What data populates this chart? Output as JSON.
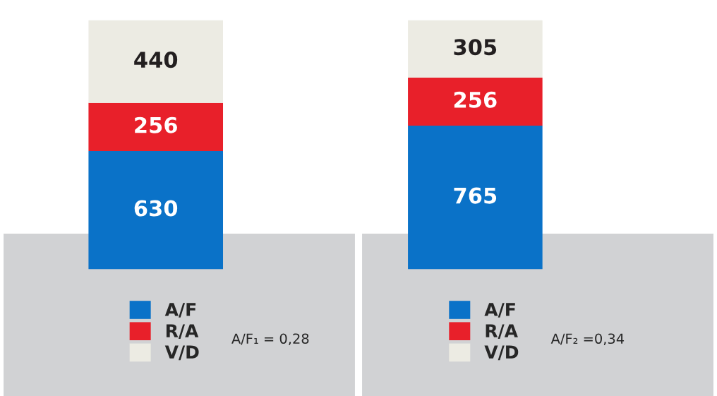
{
  "chart_data": [
    {
      "type": "bar",
      "stacked": true,
      "categories": [
        null
      ],
      "tick_labels": false,
      "data_labels": true,
      "legend": "bottom",
      "series": [
        {
          "name": "A/F",
          "color": "#0a72c8",
          "values": [
            630
          ]
        },
        {
          "name": "R/A",
          "color": "#e8202a",
          "values": [
            256
          ]
        },
        {
          "name": "V/D",
          "color": "#ecebe3",
          "values": [
            440
          ]
        }
      ],
      "annotations": [
        "A/F₁ = 0,28"
      ]
    },
    {
      "type": "bar",
      "stacked": true,
      "categories": [
        null
      ],
      "tick_labels": false,
      "data_labels": true,
      "legend": "bottom",
      "series": [
        {
          "name": "A/F",
          "color": "#0a72c8",
          "values": [
            765
          ]
        },
        {
          "name": "R/A",
          "color": "#e8202a",
          "values": [
            256
          ]
        },
        {
          "name": "V/D",
          "color": "#ecebe3",
          "values": [
            305
          ]
        }
      ],
      "annotations": [
        "A/F₂ =0,34"
      ]
    }
  ]
}
